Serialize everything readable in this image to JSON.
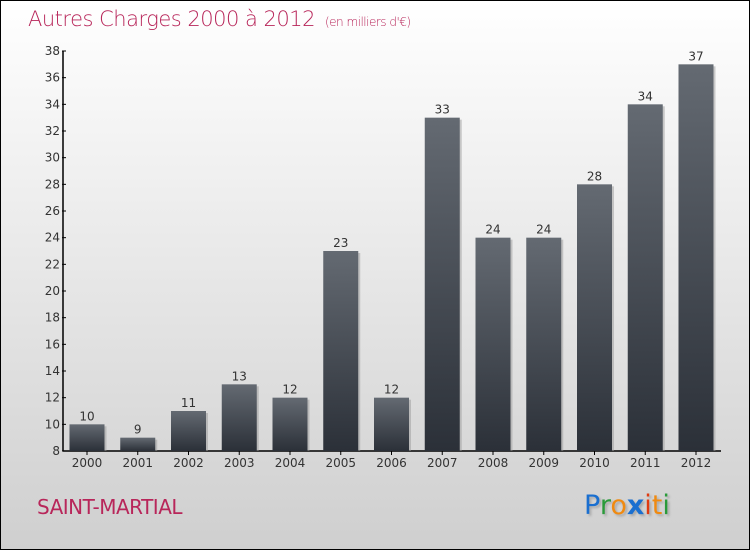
{
  "title": "Autres Charges 2000 à 2012",
  "unit": "(en milliers d'€)",
  "city": "SAINT-MARTIAL",
  "logo": "Proxiti",
  "colors": {
    "title": "#b8265a",
    "bar_top": "#646a72",
    "bar_bottom": "#2b3038"
  },
  "chart_data": {
    "type": "bar",
    "title": "Autres Charges 2000 à 2012",
    "categories": [
      "2000",
      "2001",
      "2002",
      "2003",
      "2004",
      "2005",
      "2006",
      "2007",
      "2008",
      "2009",
      "2010",
      "2011",
      "2012"
    ],
    "values": [
      10,
      9,
      11,
      13,
      12,
      23,
      12,
      33,
      24,
      24,
      28,
      34,
      37
    ],
    "ylim": [
      8,
      38
    ],
    "yticks": [
      8,
      10,
      12,
      14,
      16,
      18,
      20,
      22,
      24,
      26,
      28,
      30,
      32,
      34,
      36,
      38
    ],
    "xlabel": "",
    "ylabel": "",
    "grid": false
  }
}
